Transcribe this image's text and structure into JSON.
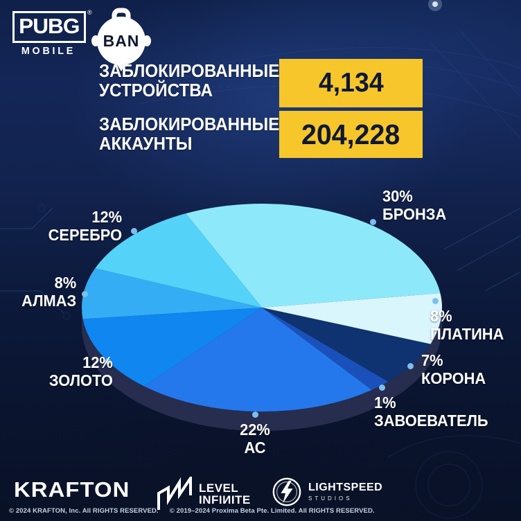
{
  "header": {
    "pubg_logo": {
      "title": "PUBG",
      "registered": "®",
      "subtitle": "MOBILE"
    },
    "ban_label": "BAN",
    "stats": [
      {
        "label_line1": "ЗАБЛОКИРОВАННЫЕ",
        "label_line2": "УСТРОЙСТВА",
        "value": "4,134"
      },
      {
        "label_line1": "ЗАБЛОКИРОВАННЫЕ",
        "label_line2": "АККАУНТЫ",
        "value": "204,228"
      }
    ],
    "accent_yellow": "#F7C62B",
    "value_text_color": "#0E1834"
  },
  "chart_data": {
    "type": "pie",
    "style": "3d-ellipse",
    "unit": "%",
    "legend_position": "around",
    "slices": [
      {
        "label": "БРОНЗА",
        "value": 30,
        "color": "#8DE9FA"
      },
      {
        "label": "ПЛАТИНА",
        "value": 8,
        "color": "#D9F6FC"
      },
      {
        "label": "КОРОНА",
        "value": 7,
        "color": "#0F3270"
      },
      {
        "label": "ЗАВОЕВАТЕЛЬ",
        "value": 1,
        "color": "#1A50BA"
      },
      {
        "label": "АС",
        "value": 22,
        "color": "#2478EC"
      },
      {
        "label": "ЗОЛОТО",
        "value": 12,
        "color": "#0F86F0"
      },
      {
        "label": "АЛМАЗ",
        "value": 8,
        "color": "#35ADF4"
      },
      {
        "label": "СЕРЕБРО",
        "value": 12,
        "color": "#55D2F8"
      }
    ],
    "side_color": "#272D4F",
    "dot_color": "#7EBEEF"
  },
  "footer": {
    "krafton": "KRAFTON",
    "level_infinite": {
      "line1": "LEVEL",
      "line2": "INFIИITE"
    },
    "lightspeed": {
      "line1": "LIGHTSPEED",
      "line2": "STUDIOS"
    },
    "copyright1": "© 2024 KRAFTON, Inc. All RIGHTS RESERVED.",
    "copyright2": "© 2019–2024 Proxima Beta Pte. Limited. All RIGHTS RESERVED."
  }
}
